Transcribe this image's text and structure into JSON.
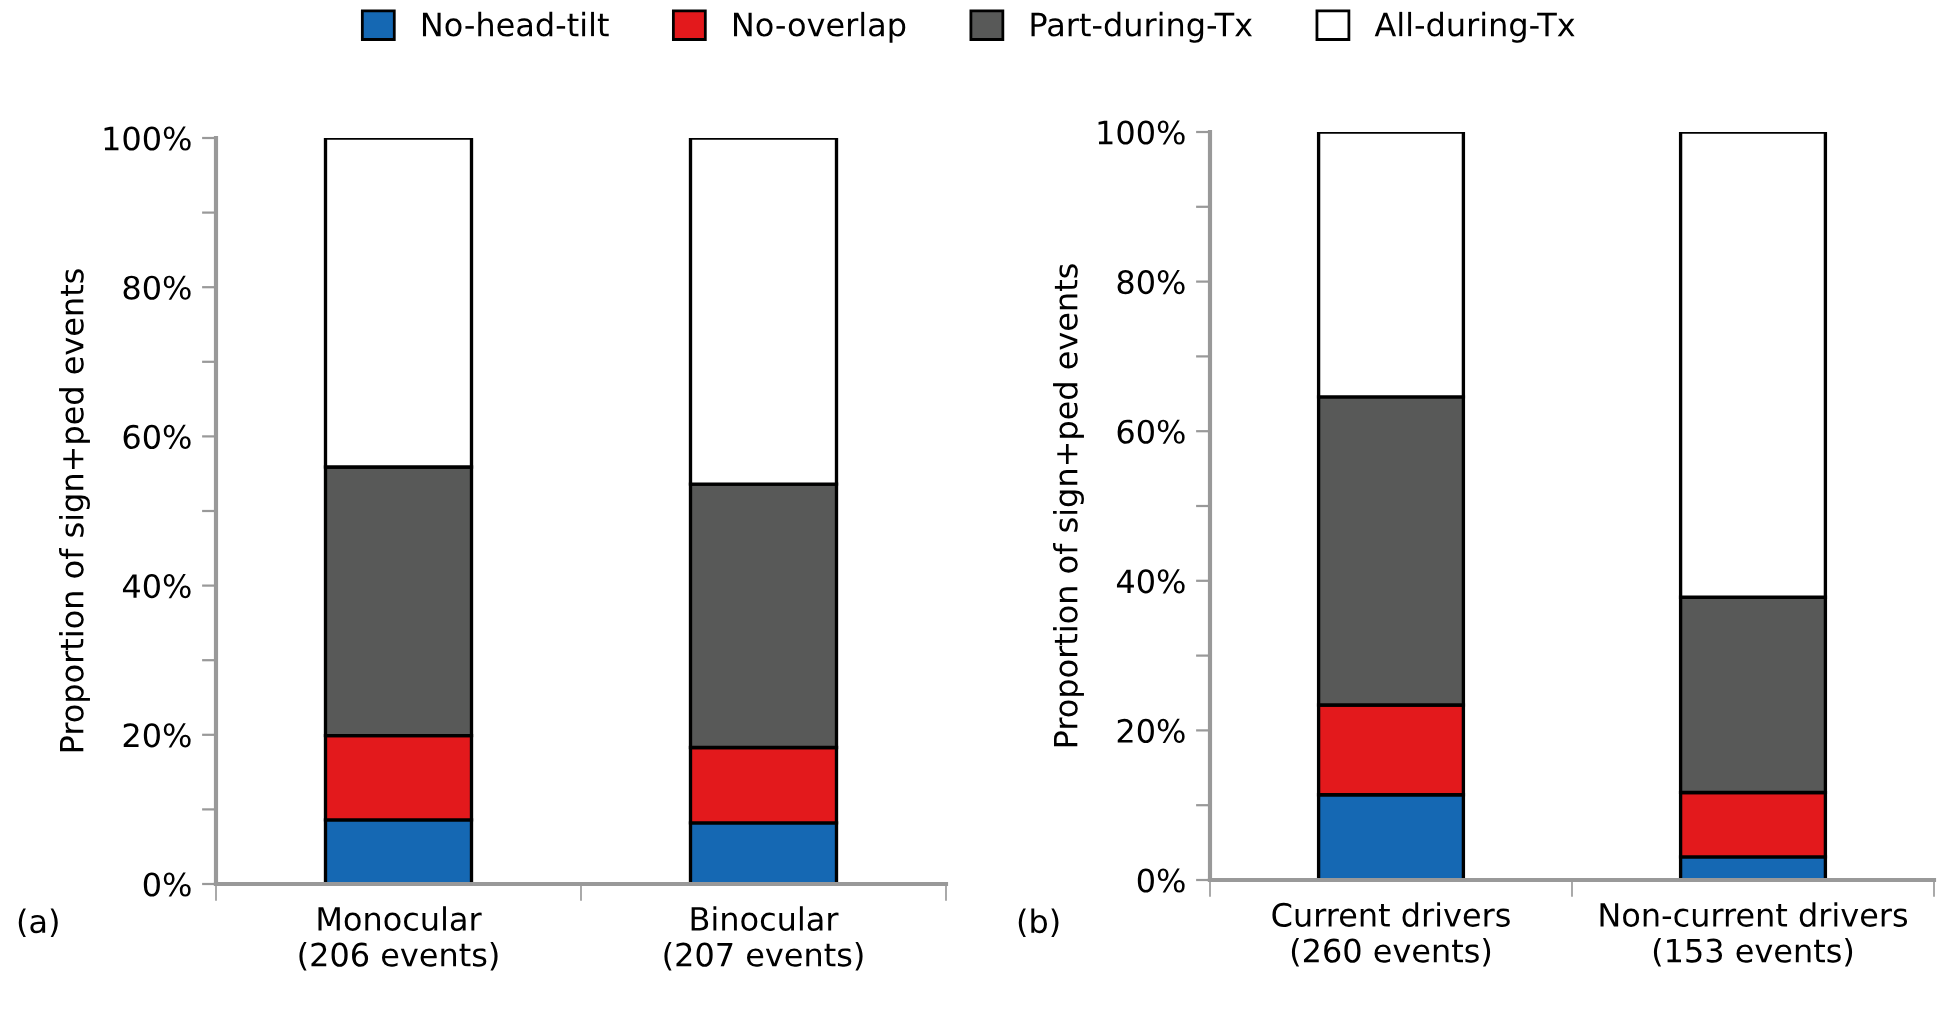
{
  "chart_data": [
    {
      "type": "bar",
      "stacked": true,
      "ylabel": "Proportion of sign+ped events",
      "categories": [
        "Monocular\n(206 events)",
        "Binocular\n(207 events)"
      ],
      "series": [
        {
          "name": "No-head-tilt",
          "color": "#1568b3",
          "values": [
            8.6,
            8.2
          ]
        },
        {
          "name": "No-overlap",
          "color": "#e3191c",
          "values": [
            11.3,
            10.1
          ]
        },
        {
          "name": "Part-during-Tx",
          "color": "#585958",
          "values": [
            36.0,
            35.3
          ]
        },
        {
          "name": "All-during-Tx",
          "color": "#ffffff",
          "values": [
            44.1,
            46.4
          ]
        }
      ],
      "ylim": [
        0,
        100
      ],
      "yticks": [
        {
          "value": 0,
          "label": "0%"
        },
        {
          "value": 10,
          "label": null
        },
        {
          "value": 20,
          "label": "20%"
        },
        {
          "value": 30,
          "label": null
        },
        {
          "value": 40,
          "label": "40%"
        },
        {
          "value": 50,
          "label": null
        },
        {
          "value": 60,
          "label": "60%"
        },
        {
          "value": 70,
          "label": null
        },
        {
          "value": 80,
          "label": "80%"
        },
        {
          "value": 90,
          "label": null
        },
        {
          "value": 100,
          "label": "100%"
        }
      ],
      "legend": "top",
      "grid": false,
      "annotations": [
        "(a)"
      ]
    },
    {
      "type": "bar",
      "stacked": true,
      "ylabel": "Proportion of sign+ped events",
      "categories": [
        "Current drivers\n(260 events)",
        "Non-current drivers\n(153 events)"
      ],
      "series": [
        {
          "color": "#1568b3",
          "values": [
            11.4,
            3.1
          ]
        },
        {
          "color": "#e3191c",
          "values": [
            12.0,
            8.6
          ]
        },
        {
          "color": "#585958",
          "values": [
            41.2,
            26.1
          ]
        },
        {
          "color": "#ffffff",
          "values": [
            35.4,
            62.2
          ]
        }
      ],
      "ylim": [
        0,
        100
      ],
      "yticks": [
        {
          "value": 0,
          "label": "0%"
        },
        {
          "value": 10,
          "label": null
        },
        {
          "value": 20,
          "label": "20%"
        },
        {
          "value": 30,
          "label": null
        },
        {
          "value": 40,
          "label": "40%"
        },
        {
          "value": 50,
          "label": null
        },
        {
          "value": 60,
          "label": "60%"
        },
        {
          "value": 70,
          "label": null
        },
        {
          "value": 80,
          "label": "80%"
        },
        {
          "value": 90,
          "label": null
        },
        {
          "value": 100,
          "label": "100%"
        }
      ],
      "grid": false,
      "annotations": [
        "(b)"
      ]
    }
  ]
}
